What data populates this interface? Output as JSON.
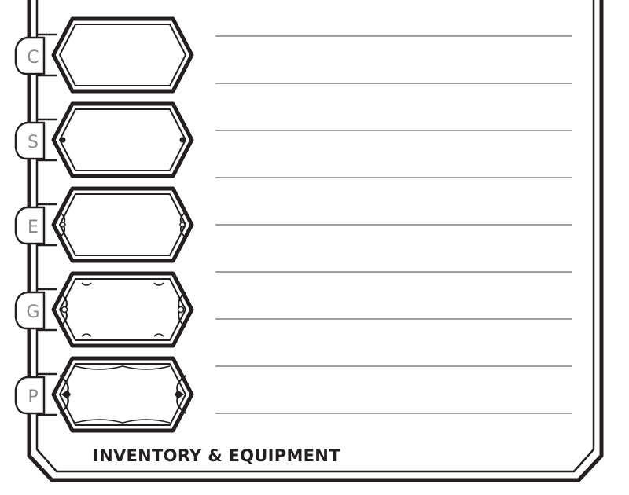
{
  "section": {
    "title": "INVENTORY & EQUIPMENT"
  },
  "coins": [
    {
      "label": "C",
      "style": "plain"
    },
    {
      "label": "S",
      "style": "dots"
    },
    {
      "label": "E",
      "style": "rings"
    },
    {
      "label": "G",
      "style": "curls"
    },
    {
      "label": "P",
      "style": "ornate"
    }
  ],
  "inventory": {
    "line_count": 9
  },
  "colors": {
    "ink": "#231f20",
    "rule": "#7f7f7f",
    "letter": "#8a8a8a"
  }
}
